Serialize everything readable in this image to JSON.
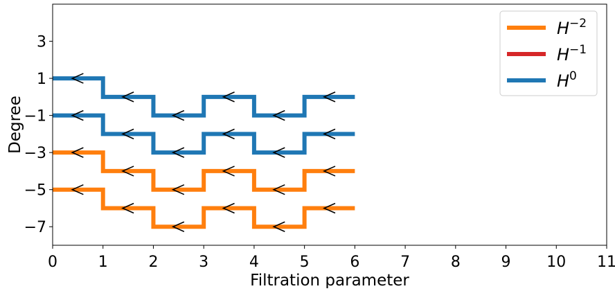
{
  "chart_data": {
    "type": "line",
    "title": "",
    "xlabel": "Filtration parameter",
    "ylabel": "Degree",
    "xlim": [
      0,
      11
    ],
    "ylim": [
      -8,
      5
    ],
    "xticks": [
      0,
      1,
      2,
      3,
      4,
      5,
      6,
      7,
      8,
      9,
      10,
      11
    ],
    "xtick_labels": [
      "0",
      "1",
      "2",
      "3",
      "4",
      "5",
      "6",
      "7",
      "8",
      "9",
      "10",
      "11"
    ],
    "yticks": [
      3,
      1,
      -1,
      -3,
      -5,
      -7
    ],
    "ytick_labels": [
      "3",
      "1",
      "−1",
      "−3",
      "−5",
      "−7"
    ],
    "grid": false,
    "legend_position": "top-right",
    "legend": [
      {
        "label": "H",
        "sup": "−2",
        "color": "#ff7f0e"
      },
      {
        "label": "H",
        "sup": "−1",
        "color": "#d62728"
      },
      {
        "label": "H",
        "sup": "0",
        "color": "#1f77b4"
      }
    ],
    "series": [
      {
        "group": "H^0",
        "color": "#1f77b4",
        "y": [
          1,
          0,
          -1,
          0,
          -1,
          0
        ]
      },
      {
        "group": "H^0",
        "color": "#1f77b4",
        "y": [
          -1,
          -2,
          -3,
          -2,
          -3,
          -2
        ]
      },
      {
        "group": "H^-2",
        "color": "#ff7f0e",
        "y": [
          -3,
          -4,
          -5,
          -4,
          -5,
          -4
        ]
      },
      {
        "group": "H^-2",
        "color": "#ff7f0e",
        "y": [
          -5,
          -6,
          -7,
          -6,
          -7,
          -6
        ]
      }
    ],
    "x_segments": [
      [
        0,
        1
      ],
      [
        1,
        2
      ],
      [
        2,
        3
      ],
      [
        3,
        4
      ],
      [
        4,
        5
      ],
      [
        5,
        6
      ]
    ],
    "arrow_direction": "left"
  }
}
